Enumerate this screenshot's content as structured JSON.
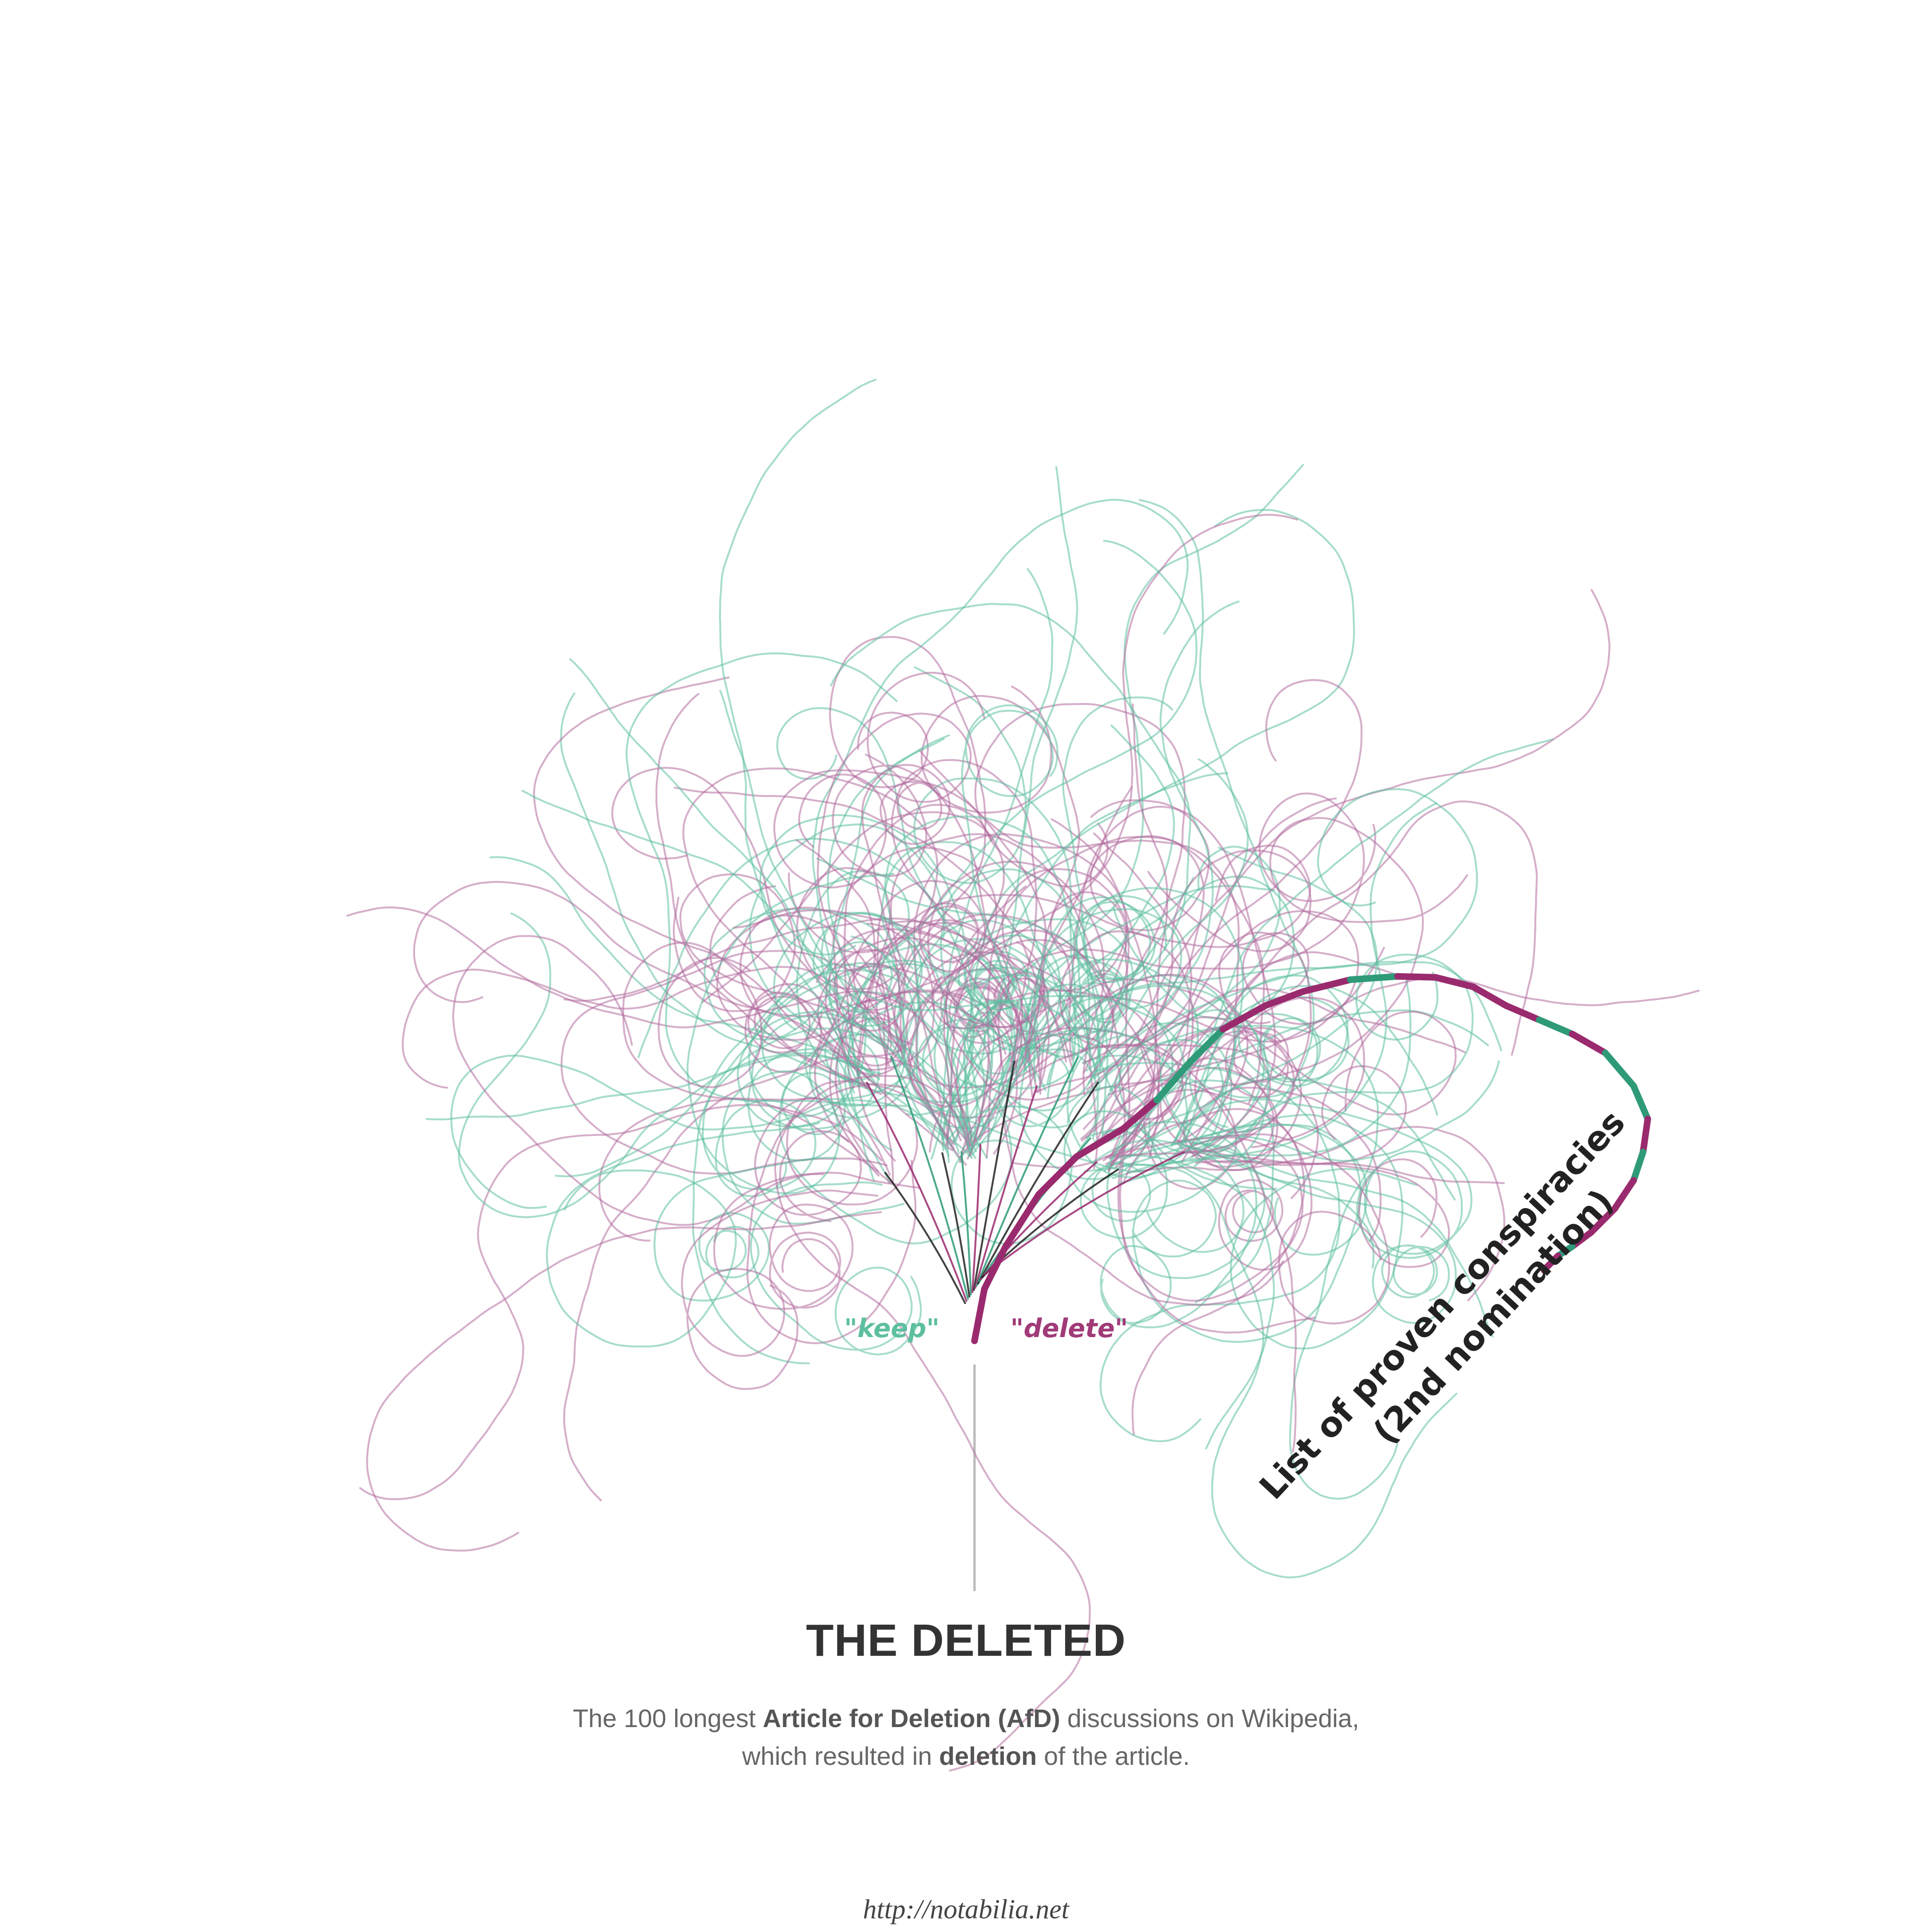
{
  "colors": {
    "keep": "#5dbfa0",
    "delete": "#b36b9e",
    "keep_strong": "#2e9a78",
    "delete_strong": "#9a2a6e",
    "trunk_dark": "#222222",
    "axis": "#bbbbbb"
  },
  "legend": {
    "keep_label": "\"keep\"",
    "delete_label": "\"delete\""
  },
  "highlight": {
    "label_line1": "List of proven conspiracies",
    "label_line2": "(2nd nomination)",
    "vote_sequence": [
      "delete",
      "delete",
      "delete",
      "delete",
      "delete",
      "delete",
      "keep",
      "keep",
      "delete",
      "delete",
      "delete",
      "keep",
      "delete",
      "delete",
      "delete",
      "delete",
      "keep",
      "delete",
      "keep",
      "keep",
      "delete",
      "keep",
      "delete",
      "delete",
      "delete",
      "keep",
      "delete",
      "delete"
    ]
  },
  "title": "THE DELETED",
  "subtitle": {
    "part1": "The 100 longest ",
    "bold1": "Article for Deletion (AfD)",
    "part2": " discussions on Wikipedia,",
    "part3": "which resulted in ",
    "bold2": "deletion",
    "part4": " of the article."
  },
  "footer": "http://notabilia.net"
}
